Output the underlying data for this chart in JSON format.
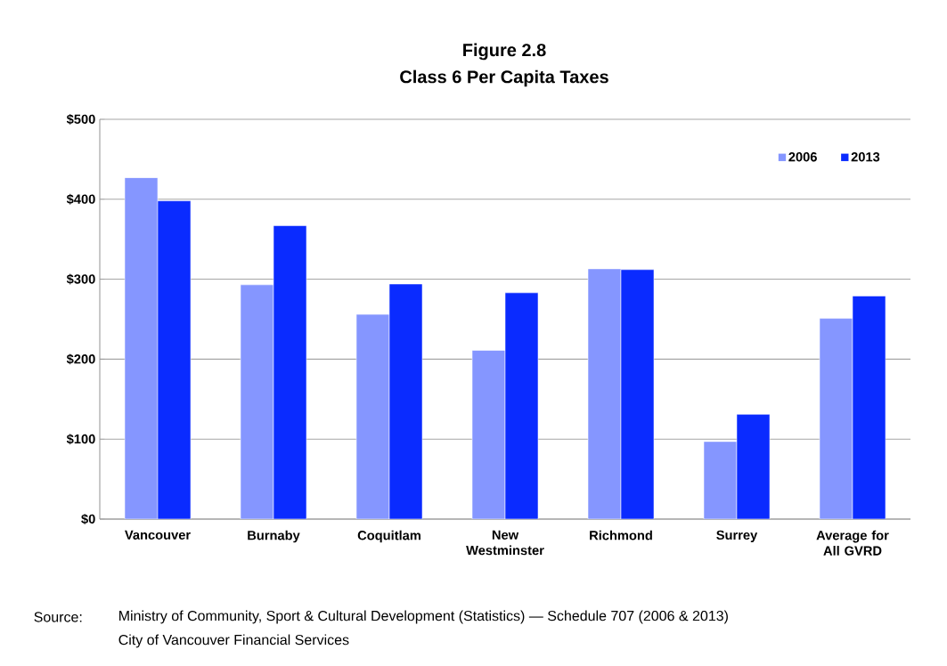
{
  "chart_data": {
    "type": "bar",
    "title": "Figure 2.8",
    "subtitle": "Class 6 Per Capita Taxes",
    "categories": [
      "Vancouver",
      "Burnaby",
      "Coquitlam",
      "New Westminster",
      "Richmond",
      "Surrey",
      "Average for All GVRD"
    ],
    "series": [
      {
        "name": "2006",
        "color": "#8596ff",
        "values": [
          427,
          293,
          256,
          211,
          313,
          97,
          251
        ]
      },
      {
        "name": "2013",
        "color": "#0a2bff",
        "values": [
          398,
          367,
          294,
          283,
          312,
          131,
          279
        ]
      }
    ],
    "ylim": [
      0,
      500
    ],
    "yticks": [
      {
        "value": 0,
        "label": "$0"
      },
      {
        "value": 100,
        "label": "$100"
      },
      {
        "value": 200,
        "label": "$200"
      },
      {
        "value": 300,
        "label": "$300"
      },
      {
        "value": 400,
        "label": "$400"
      },
      {
        "value": 500,
        "label": "$500"
      }
    ],
    "grid": "y",
    "legend": "top right",
    "annotations": [
      "Source:",
      "Ministry of Community, Sport & Cultural Development (Statistics) — Schedule 707 (2006 & 2013)",
      "City of Vancouver Financial Services"
    ]
  }
}
